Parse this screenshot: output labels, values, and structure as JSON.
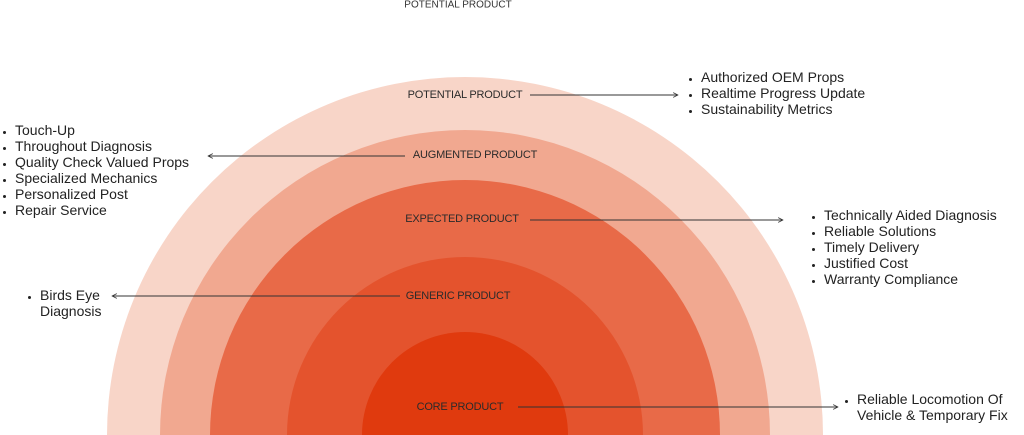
{
  "header": {
    "title": "POTENTIAL PRODUCT"
  },
  "layers": [
    {
      "label": "POTENTIAL PRODUCT",
      "items": [
        "Authorized OEM Props",
        "Realtime Progress Update",
        "Sustainability Metrics"
      ]
    },
    {
      "label": "AUGMENTED PRODUCT",
      "items": [
        "Touch-Up",
        "Throughout Diagnosis",
        "Quality Check Valued Props",
        "Specialized Mechanics",
        "Personalized Post",
        "Repair Service"
      ]
    },
    {
      "label": "EXPECTED PRODUCT",
      "items": [
        "Technically Aided Diagnosis",
        "Reliable Solutions",
        "Timely Delivery",
        "Justified Cost",
        "Warranty Compliance"
      ]
    },
    {
      "label": "GENERIC PRODUCT",
      "items": [
        "Birds Eye Diagnosis"
      ]
    },
    {
      "label": "CORE PRODUCT",
      "items": [
        "Reliable Locomotion Of Vehicle & Temporary Fix"
      ]
    }
  ]
}
